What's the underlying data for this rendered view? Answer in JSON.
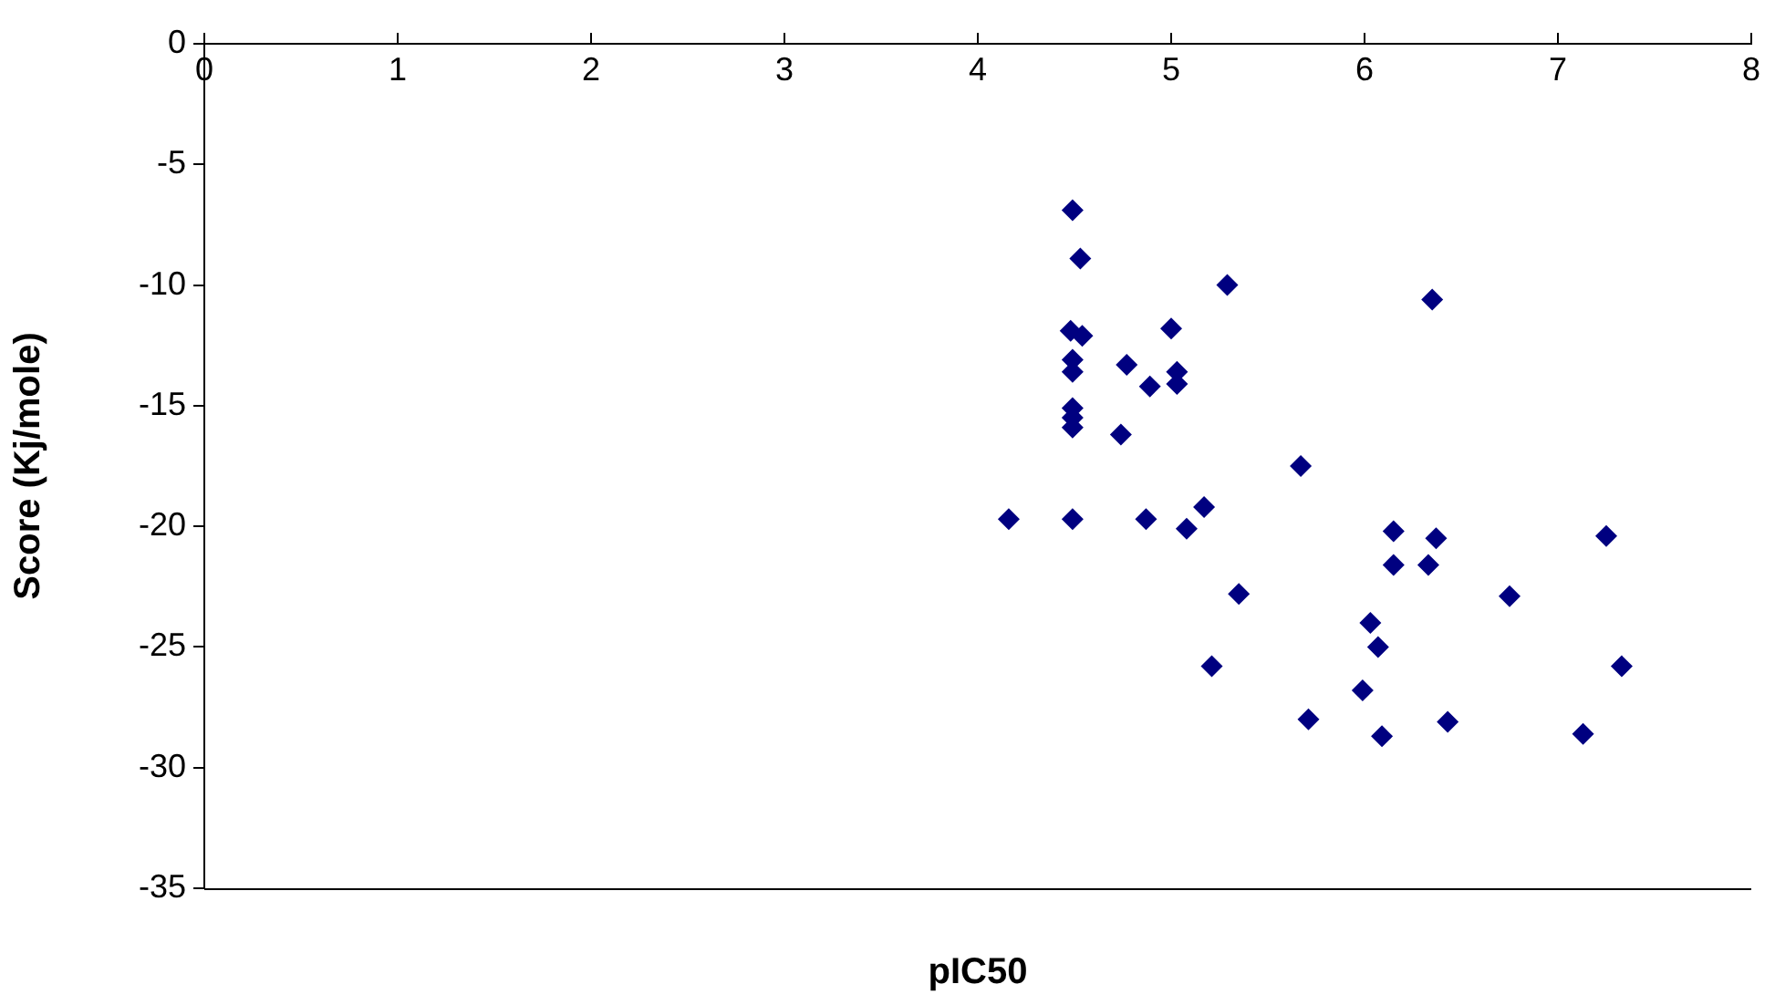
{
  "chart_data": {
    "type": "scatter",
    "xlabel": "pIC50",
    "ylabel": "Score (Kj/mole)",
    "x": [
      4.49,
      4.53,
      5.29,
      4.48,
      4.54,
      5.0,
      4.49,
      4.49,
      4.77,
      5.03,
      5.03,
      4.89,
      4.49,
      4.49,
      4.49,
      4.74,
      5.67,
      5.17,
      4.16,
      4.49,
      4.87,
      5.08,
      5.35,
      5.21,
      5.71,
      6.03,
      6.07,
      5.99,
      6.09,
      6.15,
      6.15,
      6.35,
      6.37,
      6.33,
      6.43,
      6.75,
      7.13,
      7.25,
      7.33
    ],
    "series": [
      {
        "color": "#000080",
        "values": [
          -6.9,
          -8.9,
          -10.0,
          -11.9,
          -12.1,
          -11.8,
          -13.1,
          -13.6,
          -13.3,
          -13.6,
          -14.1,
          -14.2,
          -15.1,
          -15.5,
          -15.9,
          -16.2,
          -17.5,
          -19.2,
          -19.7,
          -19.7,
          -19.7,
          -20.1,
          -22.8,
          -25.8,
          -28.0,
          -24.0,
          -25.0,
          -26.8,
          -28.7,
          -20.2,
          -21.6,
          -10.6,
          -20.5,
          -21.6,
          -28.1,
          -22.9,
          -28.6,
          -20.4,
          -25.8
        ]
      }
    ],
    "xlim": [
      0,
      8
    ],
    "xticks": [
      0,
      1,
      2,
      3,
      4,
      5,
      6,
      7,
      8
    ],
    "ylim": [
      -35,
      0
    ],
    "yticks": [
      -35,
      -30,
      -25,
      -20,
      -15,
      -10,
      -5,
      0
    ],
    "marker": "diamond",
    "grid": false,
    "legend": false
  }
}
